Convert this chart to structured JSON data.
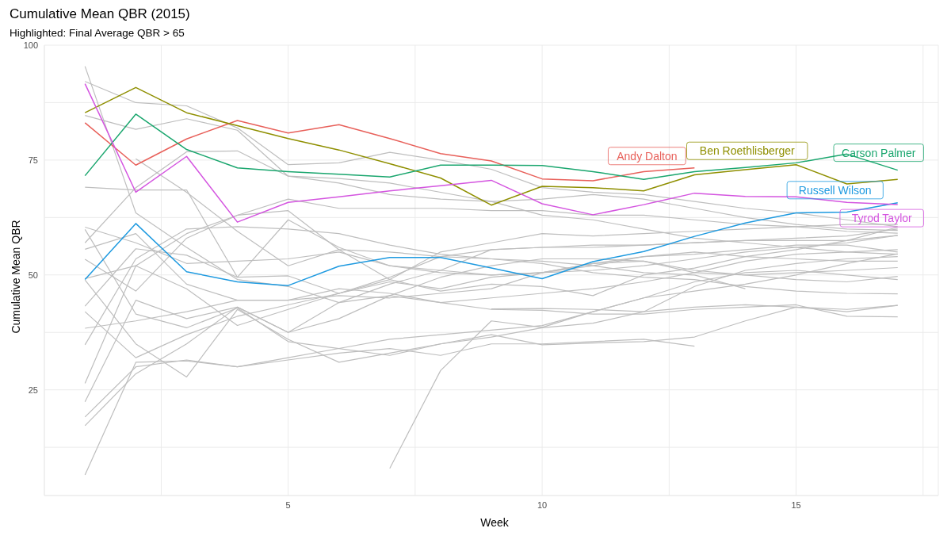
{
  "chart_data": {
    "type": "line",
    "title": "Cumulative Mean QBR (2015)",
    "subtitle": "Highlighted: Final Average QBR > 65",
    "xlabel": "Week",
    "ylabel": "Cumulative Mean QBR",
    "x": [
      1,
      2,
      3,
      4,
      5,
      6,
      7,
      8,
      9,
      10,
      11,
      12,
      13,
      14,
      15,
      16,
      17
    ],
    "xlim": [
      0.2,
      17.8
    ],
    "xticks": [
      {
        "value": 2.5,
        "label": null
      },
      5,
      {
        "value": 7.5,
        "label": null
      },
      10,
      {
        "value": 12.5,
        "label": null
      },
      15,
      {
        "value": 17.5,
        "label": null
      }
    ],
    "ylim": [
      2,
      100
    ],
    "yticks": [
      {
        "value": 12.5,
        "label": null
      },
      25,
      {
        "value": 37.5,
        "label": null
      },
      50,
      {
        "value": 62.5,
        "label": null
      },
      75,
      {
        "value": 87.5,
        "label": null
      },
      100
    ],
    "grid": true,
    "legend": false,
    "marker": "none",
    "line_style": "solid",
    "series": [
      {
        "color": "#bebebe",
        "values": [
          95.4,
          63.5,
          56.0,
          49.0,
          47.5,
          44.0,
          45.5,
          44.0,
          45.0,
          46.0,
          47.0,
          48.5,
          50.5,
          53.0,
          54.5,
          55.0,
          55.5
        ]
      },
      {
        "color": "#bebebe",
        "values": [
          92.1,
          87.5,
          86.8,
          82.0,
          74.0,
          74.4,
          76.7,
          75.0,
          73.0,
          69.0,
          68.0,
          67.5,
          66.0,
          64.5,
          63.5,
          62.0,
          60.5
        ]
      },
      {
        "color": "#bebebe",
        "values": [
          84.7,
          81.7,
          84.0,
          81.5,
          71.5,
          71.0,
          70.0,
          68.0,
          66.0,
          63.0,
          62.0,
          60.0,
          58.0,
          57.0,
          56.0,
          55.0,
          54.5
        ]
      },
      {
        "color": "#bebebe",
        "values": [
          69.1,
          68.5,
          68.5,
          49.5,
          49.8,
          46.0,
          48.5,
          47.0,
          49.5,
          50.5,
          51.0,
          52.0,
          53.5,
          55.0,
          56.0,
          57.0,
          58.6
        ]
      },
      {
        "color": "#bebebe",
        "values": [
          60.4,
          57.0,
          52.5,
          53.0,
          53.5,
          55.0,
          52.0,
          50.5,
          50.0,
          50.5,
          52.0,
          54.0,
          55.0,
          54.0,
          53.5,
          53.0,
          53.0
        ]
      },
      {
        "color": "#bebebe",
        "values": [
          59.9,
          41.5,
          38.5,
          42.8,
          35.5,
          34.0,
          32.5,
          35.0,
          37.0,
          34.8,
          35.2,
          35.5,
          36.5,
          40.0,
          43.0,
          42.5,
          43.4
        ]
      },
      {
        "color": "#bebebe",
        "values": [
          57.0,
          69.0,
          76.8,
          77.0,
          71.5,
          70.0,
          67.5,
          66.5,
          66.0,
          66.5,
          67.5,
          66.5,
          64.5,
          62.5,
          61.0,
          60.0,
          59.7
        ]
      },
      {
        "color": "#bebebe",
        "values": [
          55.6,
          59.0,
          48.0,
          44.5,
          44.5,
          47.0,
          46.0,
          44.0,
          42.5,
          42.3,
          41.5,
          41.5,
          42.5,
          43.0,
          43.5,
          41.0,
          40.9
        ]
      },
      {
        "color": "#bebebe",
        "values": [
          53.4,
          46.5,
          58.0,
          63.0,
          66.5,
          64.5,
          64.5,
          64.5,
          64.0,
          64.0,
          63.0,
          63.0,
          62.0,
          61.0,
          60.5,
          59.5,
          59.1
        ]
      },
      {
        "color": "#bebebe",
        "values": [
          49.2,
          52.0,
          59.0,
          63.0,
          64.0,
          55.5,
          49.0,
          46.5,
          48.0,
          47.5,
          45.5,
          50.0,
          51.5,
          54.0,
          55.5,
          57.5,
          60.4
        ]
      },
      {
        "color": "#bebebe",
        "values": [
          48.9,
          35.0,
          27.8,
          42.5,
          36.0,
          31.0,
          33.0,
          35.0,
          36.5,
          38.5,
          39.5,
          42.0,
          47.5,
          51.0,
          52.5,
          53.5,
          54.0
        ]
      },
      {
        "color": "#bebebe",
        "values": [
          43.2,
          55.7,
          54.3,
          49.5,
          62.0,
          56.0,
          52.0,
          51.0,
          50.0,
          50.5,
          52.5,
          53.0,
          50.5,
          50.0,
          49.0,
          48.5,
          49.7
        ]
      },
      {
        "color": "#bebebe",
        "values": [
          42.0,
          32.0,
          37.0,
          41.0,
          43.5,
          46.0,
          49.0,
          55.0,
          57.0,
          59.0,
          58.5,
          59.0,
          59.5,
          60.0,
          60.5,
          61.0,
          61.0
        ]
      },
      {
        "color": "#bebebe",
        "values": [
          38.4,
          40.0,
          42.0,
          44.5,
          44.5,
          45.5,
          45.0,
          46.0,
          47.0,
          50.5,
          52.5,
          54.0,
          54.5,
          55.5,
          56.5,
          56.5,
          55.0
        ]
      },
      {
        "color": "#bebebe",
        "values": [
          34.8,
          53.5,
          60.0,
          60.5,
          60.0,
          59.0,
          56.5,
          54.5,
          53.5,
          52.5,
          50.5,
          49.5,
          49.0,
          47.5,
          46.5,
          46.0,
          45.9
        ]
      },
      {
        "color": "#bebebe",
        "values": [
          26.4,
          52.0,
          47.0,
          39.0,
          42.5,
          46.0,
          49.5,
          54.0,
          55.5,
          56.0,
          56.5,
          56.5,
          57.0,
          57.5,
          58.0,
          58.5,
          60.0
        ]
      },
      {
        "color": "#bebebe",
        "values": [
          22.4,
          44.5,
          40.5,
          43.0,
          37.5,
          40.5,
          45.5,
          49.5,
          52.0,
          53.5,
          53.5,
          53.0,
          51.0,
          50.0,
          50.5,
          51.0,
          51.6
        ]
      },
      {
        "color": "#bebebe",
        "values": [
          19.1,
          30.0,
          31.5,
          30.0,
          32.0,
          34.0,
          36.0,
          37.0,
          38.0,
          39.0,
          42.0,
          45.0,
          46.5,
          48.0,
          50.0,
          52.5,
          54.6
        ]
      },
      {
        "color": "#bebebe",
        "values": [
          17.2,
          28.5,
          35.0,
          43.0,
          37.5,
          44.0,
          48.0,
          51.0,
          55.5,
          56.0,
          56.0,
          56.5,
          57.0,
          57.5,
          57.5,
          57.5,
          58.6
        ]
      },
      {
        "color": "#bebebe",
        "values": [
          6.5,
          31.0,
          31.3,
          30.0,
          31.5,
          33.0,
          34.0,
          32.5,
          35.0,
          35.0,
          35.5,
          36.0,
          34.5,
          null,
          null,
          null,
          null
        ]
      },
      {
        "color": "#bebebe",
        "values": [
          null,
          75.3,
          68.0,
          59.5,
          52.0,
          55.5,
          55.0,
          54.0,
          53.5,
          53.0,
          52.0,
          50.5,
          50.0,
          47.0,
          null,
          null,
          null
        ]
      },
      {
        "color": "#bebebe",
        "values": [
          null,
          null,
          null,
          null,
          null,
          null,
          7.9,
          29.2,
          40.0,
          38.6,
          42.0,
          45.0,
          48.5,
          50.5,
          51.0,
          50.0,
          49.0
        ]
      },
      {
        "color": "#bebebe",
        "values": [
          null,
          null,
          null,
          null,
          null,
          null,
          null,
          null,
          42.6,
          42.7,
          42.5,
          42.0,
          43.0,
          43.5,
          43.0,
          42.0,
          43.4
        ]
      },
      {
        "name": "Andy Dalton",
        "color": "#e8605a",
        "values": [
          83.1,
          73.9,
          79.6,
          83.6,
          80.9,
          82.7,
          79.7,
          76.4,
          74.8,
          70.9,
          70.5,
          72.5,
          73.3,
          null,
          null,
          null,
          null
        ]
      },
      {
        "name": "Ben Roethlisberger",
        "color": "#8f8f00",
        "values": [
          85.3,
          90.8,
          85.3,
          82.5,
          79.7,
          77.2,
          74.2,
          71.1,
          65.2,
          69.3,
          69.0,
          68.3,
          71.8,
          72.9,
          74.0,
          69.8,
          70.8
        ]
      },
      {
        "name": "Carson Palmer",
        "color": "#1aa66e",
        "values": [
          71.6,
          85.0,
          77.3,
          73.3,
          72.5,
          71.9,
          71.3,
          73.9,
          73.9,
          73.8,
          72.5,
          70.8,
          72.5,
          73.4,
          74.4,
          76.3,
          72.8
        ]
      },
      {
        "name": "Russell Wilson",
        "color": "#1e9ae0",
        "values": [
          49.0,
          61.2,
          50.7,
          48.5,
          47.7,
          51.9,
          53.8,
          53.8,
          51.5,
          49.2,
          52.9,
          55.1,
          58.4,
          61.3,
          63.5,
          63.7,
          65.7
        ]
      },
      {
        "name": "Tyrod Taylor",
        "color": "#d455e0",
        "values": [
          91.6,
          68.0,
          75.8,
          61.5,
          65.8,
          67.0,
          68.3,
          69.4,
          70.6,
          65.5,
          63.1,
          65.3,
          67.8,
          67.1,
          67.0,
          65.8,
          65.3
        ]
      }
    ]
  }
}
